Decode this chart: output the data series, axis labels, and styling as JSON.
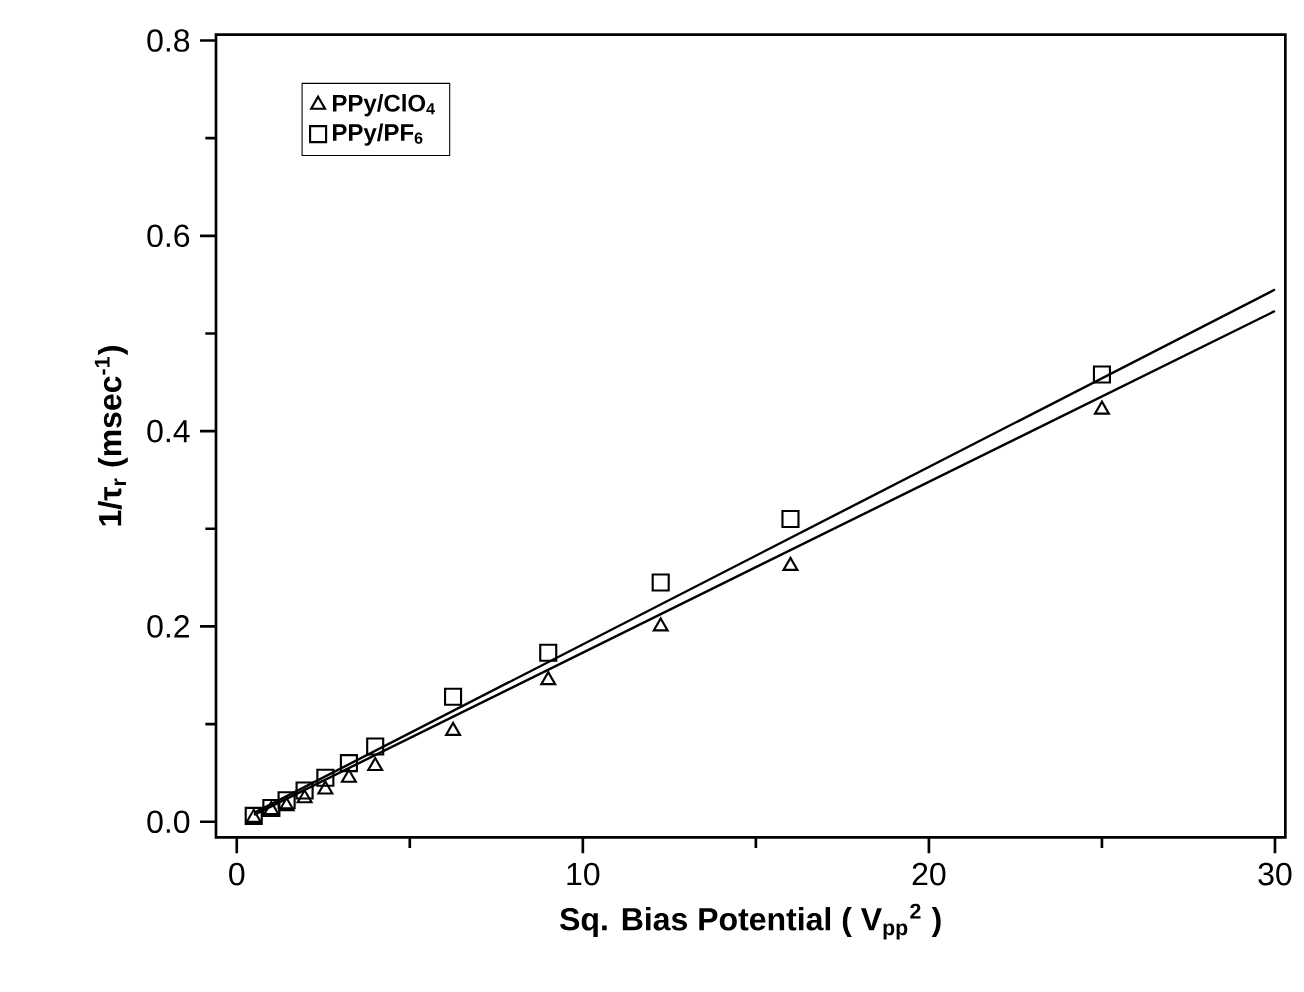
{
  "chart_data": {
    "type": "scatter",
    "xlabel": "Sq. Bias Potential ( V$_{pp}$$^{2}$ )",
    "ylabel": "1/τ$_{r}$ (msec$^{-1}$)",
    "xlim": [
      -0.6,
      30.3
    ],
    "ylim": [
      -0.016,
      0.806
    ],
    "xticks": [
      0,
      10,
      20,
      30
    ],
    "yticks": [
      {
        "value": 0,
        "label": "0.0"
      },
      {
        "value": 0.2,
        "label": "0.2"
      },
      {
        "value": 0.4,
        "label": "0.4"
      },
      {
        "value": 0.6,
        "label": "0.6"
      },
      {
        "value": 0.8,
        "label": "0.8"
      }
    ],
    "grid": false,
    "legend": "top left",
    "series": [
      {
        "name": "PPy/ClO$_{4}$",
        "color": "#000000",
        "marker": "triangle",
        "x": [
          0.49,
          1,
          1.44,
          1.96,
          2.56,
          3.24,
          4,
          6.25,
          9,
          12.25,
          16,
          25
        ],
        "values": [
          0.004,
          0.012,
          0.016,
          0.024,
          0.033,
          0.045,
          0.057,
          0.093,
          0.145,
          0.2,
          0.262,
          0.422
        ]
      },
      {
        "name": "PPy/PF$_{6}$",
        "color": "#000000",
        "marker": "square",
        "x": [
          0.49,
          1,
          1.44,
          1.96,
          2.56,
          3.24,
          4,
          6.25,
          9,
          12.25,
          16,
          25
        ],
        "values": [
          0.006,
          0.014,
          0.022,
          0.032,
          0.045,
          0.06,
          0.077,
          0.128,
          0.173,
          0.245,
          0.31,
          0.458
        ]
      },
      {
        "type": "line",
        "color": "#000000",
        "marker": "none",
        "line_style": "solid",
        "x": [
          0.5,
          30
        ],
        "values": [
          0.007,
          0.523
        ]
      },
      {
        "type": "line",
        "color": "#000000",
        "marker": "none",
        "line_style": "solid",
        "x": [
          0.5,
          30
        ],
        "values": [
          0.009,
          0.545
        ]
      }
    ]
  }
}
